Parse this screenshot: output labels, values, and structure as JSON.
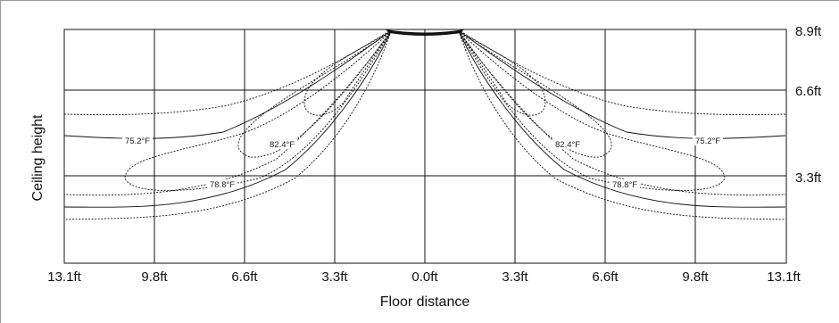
{
  "diagram": {
    "x_axis": {
      "label": "Floor distance",
      "ticks": [
        "13.1ft",
        "9.8ft",
        "6.6ft",
        "3.3ft",
        "0.0ft",
        "3.3ft",
        "6.6ft",
        "9.8ft",
        "13.1ft"
      ]
    },
    "y_axis": {
      "label": "Ceiling height",
      "ticks": [
        "8.9ft",
        "6.6ft",
        "3.3ft"
      ]
    },
    "contour_labels": {
      "left": [
        "75.2°F",
        "82.4°F",
        "78.8°F"
      ],
      "right": [
        "82.4°F",
        "78.8°F",
        "75.2°F"
      ]
    },
    "colors": {
      "lines": "#111111",
      "background": "#ffffff"
    }
  }
}
